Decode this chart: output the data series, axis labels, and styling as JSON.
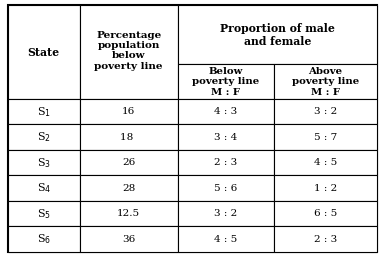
{
  "state_subs": [
    "1",
    "2",
    "3",
    "4",
    "5",
    "6"
  ],
  "pct_below": [
    "16",
    "18 ",
    "26",
    "28",
    "12.5",
    "36"
  ],
  "below_mf": [
    "4 : 3",
    "3 : 4",
    "2 : 3",
    "5 : 6",
    "3 : 2",
    "4 : 5"
  ],
  "above_mf": [
    "3 : 2",
    "5 : 7",
    "4 : 5",
    "1 : 2",
    "6 : 5",
    "2 : 3"
  ],
  "bg_color": "#ffffff",
  "line_color": "#000000",
  "font_size": 7.5,
  "header_font_size": 7.8
}
